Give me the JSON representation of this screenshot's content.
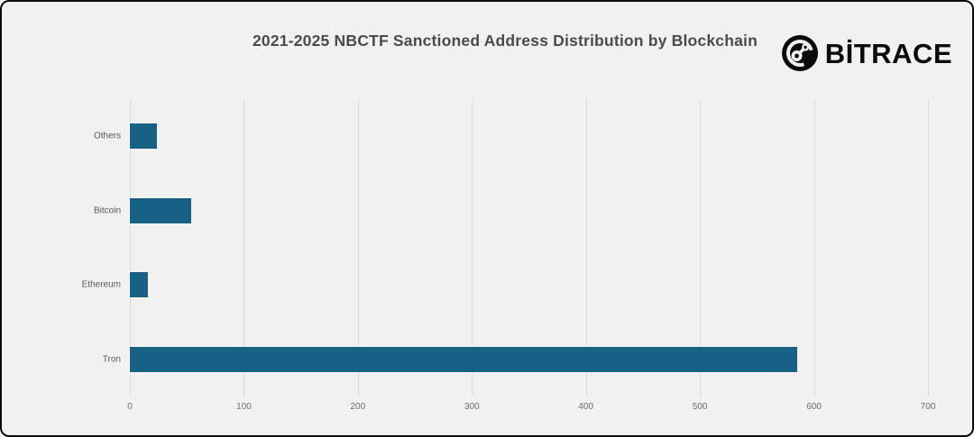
{
  "header": {
    "title": "2021-2025 NBCTF Sanctioned Address Distribution by Blockchain",
    "brand": "BİTRACE"
  },
  "chart_data": {
    "type": "bar",
    "orientation": "horizontal",
    "title": "2021-2025 NBCTF Sanctioned Address Distribution by Blockchain",
    "categories": [
      "Others",
      "Bitcoin",
      "Ethereum",
      "Tron"
    ],
    "values": [
      24,
      54,
      16,
      585
    ],
    "xlabel": "",
    "ylabel": "",
    "xlim": [
      0,
      700
    ],
    "xticks": [
      0,
      100,
      200,
      300,
      400,
      500,
      600,
      700
    ],
    "grid": true,
    "legend": "none",
    "bar_color": "#176187",
    "gridline_color": "#dcdcdd",
    "background_color": "#f1f1f2",
    "title_color": "#4b4b4b"
  }
}
